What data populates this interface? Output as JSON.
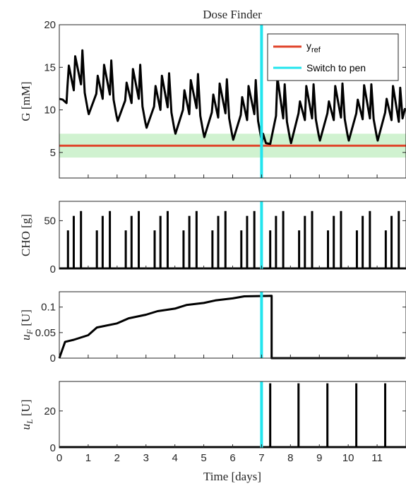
{
  "title": "Dose Finder",
  "xlabel": "Time [days]",
  "colors": {
    "glucose": "#000000",
    "reference": "#e0442a",
    "switch": "#22e5ee",
    "band": "#c8f0c8"
  },
  "chart_data": [
    {
      "type": "line",
      "ylabel": "G [mM]",
      "ylim": [
        2,
        20
      ],
      "yticks": [
        "5",
        "10",
        "15",
        "20"
      ],
      "xlim": [
        0,
        12
      ],
      "legend": {
        "placement": "top-right",
        "entries": [
          "y_ref",
          "Switch to pen"
        ]
      },
      "reference": {
        "name": "y_ref",
        "y": 5.8
      },
      "target_band": [
        4.4,
        7.2
      ],
      "switch_time": 7,
      "series": [
        {
          "x": [
            0,
            0.15,
            0.3,
            0.4,
            0.5,
            0.6,
            0.7,
            0.8,
            0.9,
            1.0,
            1.1,
            1.4,
            1.8,
            2.0,
            2.5,
            3.0,
            3.5,
            4.0,
            4.5,
            5.0,
            5.5,
            6.0,
            6.5,
            7.0,
            7.1,
            7.3,
            7.4,
            8.0,
            8.5,
            9.0,
            9.5,
            10.0,
            10.5,
            11.0,
            11.5,
            11.97
          ],
          "peaks": [
            {
              "day": 0,
              "peaks": [
                15.2,
                16.3,
                17.0
              ],
              "trough": 9.5
            },
            {
              "day": 1,
              "peaks": [
                14.0,
                15.3,
                15.8
              ],
              "trough": 8.7
            },
            {
              "day": 2,
              "peaks": [
                13.2,
                14.8,
                15.3
              ],
              "trough": 7.9
            },
            {
              "day": 3,
              "peaks": [
                12.8,
                14.0,
                14.3
              ],
              "trough": 7.2
            },
            {
              "day": 4,
              "peaks": [
                12.3,
                13.5,
                14.2
              ],
              "trough": 6.8
            },
            {
              "day": 5,
              "peaks": [
                11.8,
                13.1,
                13.6
              ],
              "trough": 6.5
            },
            {
              "day": 6,
              "peaks": [
                11.5,
                12.8,
                13.5
              ],
              "trough": 6.2
            },
            {
              "day": 7,
              "peaks": [
                13.8,
                13.0
              ],
              "trough": 6.1
            },
            {
              "day": 8,
              "peaks": [
                11.0,
                12.8,
                13.0
              ],
              "trough": 6.4
            },
            {
              "day": 9,
              "peaks": [
                11.0,
                12.8,
                13.1
              ],
              "trough": 6.4
            },
            {
              "day": 10,
              "peaks": [
                11.2,
                12.9,
                13.0
              ],
              "trough": 6.4
            },
            {
              "day": 11,
              "peaks": [
                11.3,
                12.8,
                12.6
              ],
              "trough": 6.5
            }
          ],
          "start": 11.3
        }
      ]
    },
    {
      "type": "bar",
      "ylabel": "CHO [g]",
      "ylim": [
        0,
        70
      ],
      "yticks": [
        "0",
        "50"
      ],
      "xlim": [
        0,
        12
      ],
      "meal_offsets_days": [
        0.3,
        0.5,
        0.75
      ],
      "meal_values": [
        40,
        55,
        60
      ],
      "days": [
        0,
        1,
        2,
        3,
        4,
        5,
        6,
        7,
        8,
        9,
        10,
        11
      ]
    },
    {
      "type": "line",
      "ylabel": "u_F [U]",
      "ylim": [
        0,
        0.13
      ],
      "yticks": [
        "0",
        "0.05",
        "0.1"
      ],
      "xlim": [
        0,
        12
      ],
      "switch_time": 7,
      "steps": [
        {
          "x": 0,
          "y": 0
        },
        {
          "x": 0.2,
          "y": 0.032
        },
        {
          "x": 0.5,
          "y": 0.036
        },
        {
          "x": 1.0,
          "y": 0.045
        },
        {
          "x": 1.3,
          "y": 0.06
        },
        {
          "x": 2.0,
          "y": 0.068
        },
        {
          "x": 2.4,
          "y": 0.078
        },
        {
          "x": 3.0,
          "y": 0.085
        },
        {
          "x": 3.4,
          "y": 0.092
        },
        {
          "x": 4.0,
          "y": 0.097
        },
        {
          "x": 4.4,
          "y": 0.104
        },
        {
          "x": 5.0,
          "y": 0.108
        },
        {
          "x": 5.4,
          "y": 0.113
        },
        {
          "x": 6.0,
          "y": 0.117
        },
        {
          "x": 6.4,
          "y": 0.121
        },
        {
          "x": 7.35,
          "y": 0.122
        },
        {
          "x": 7.35,
          "y": 0
        },
        {
          "x": 11.97,
          "y": 0
        }
      ]
    },
    {
      "type": "bar",
      "ylabel": "u_L [U]",
      "ylim": [
        0,
        36
      ],
      "yticks": [
        "0",
        "20"
      ],
      "xlim": [
        0,
        12
      ],
      "xticks": [
        "0",
        "1",
        "2",
        "3",
        "4",
        "5",
        "6",
        "7",
        "8",
        "9",
        "10",
        "11"
      ],
      "switch_time": 7,
      "doses": [
        {
          "x": 7.3,
          "y": 35
        },
        {
          "x": 8.28,
          "y": 35
        },
        {
          "x": 9.28,
          "y": 35
        },
        {
          "x": 10.28,
          "y": 35
        },
        {
          "x": 11.28,
          "y": 35
        }
      ]
    }
  ]
}
